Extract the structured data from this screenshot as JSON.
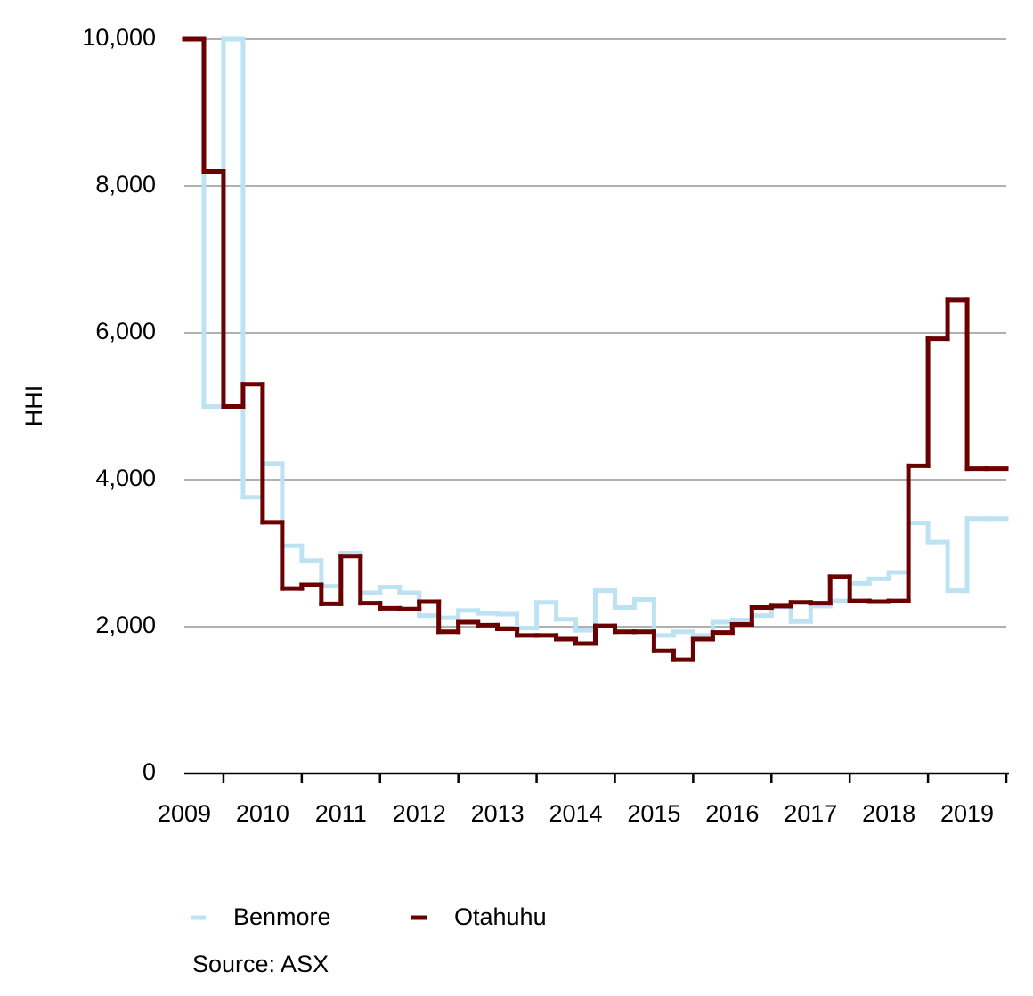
{
  "chart_data": {
    "type": "step-line",
    "y_label": "HHI",
    "source": "Source: ASX",
    "x": [
      2009.5,
      2009.75,
      2010,
      2010.25,
      2010.5,
      2010.75,
      2011,
      2011.25,
      2011.5,
      2011.75,
      2012,
      2012.25,
      2012.5,
      2012.75,
      2013,
      2013.25,
      2013.5,
      2013.75,
      2014,
      2014.25,
      2014.5,
      2014.75,
      2015,
      2015.25,
      2015.5,
      2015.75,
      2016,
      2016.25,
      2016.5,
      2016.75,
      2017,
      2017.25,
      2017.5,
      2017.75,
      2018,
      2018.25,
      2018.5,
      2018.75,
      2019,
      2019.25,
      2019.5,
      2019.75
    ],
    "xlim": [
      2009.5,
      2020
    ],
    "xticks": [
      {
        "value": 2009.5,
        "label": "2009"
      },
      {
        "value": 2010.5,
        "label": "2010"
      },
      {
        "value": 2011.5,
        "label": "2011"
      },
      {
        "value": 2012.5,
        "label": "2012"
      },
      {
        "value": 2013.5,
        "label": "2013"
      },
      {
        "value": 2014.5,
        "label": "2014"
      },
      {
        "value": 2015.5,
        "label": "2015"
      },
      {
        "value": 2016.5,
        "label": "2016"
      },
      {
        "value": 2017.5,
        "label": "2017"
      },
      {
        "value": 2018.5,
        "label": "2018"
      },
      {
        "value": 2019.5,
        "label": "2019"
      }
    ],
    "ylim": [
      0,
      10000
    ],
    "yticks": [
      0,
      {
        "value": 2000,
        "label": "2,000"
      },
      {
        "value": 4000,
        "label": "4,000"
      },
      {
        "value": 6000,
        "label": "6,000"
      },
      {
        "value": 8000,
        "label": "8,000"
      },
      {
        "value": 10000,
        "label": "10,000"
      }
    ],
    "grid": true,
    "legend": "bottom",
    "series": [
      {
        "name": "Benmore",
        "color": "#bde3f3",
        "values": [
          10000,
          5000,
          10000,
          3760,
          4220,
          3100,
          2900,
          2550,
          3000,
          2460,
          2540,
          2460,
          2150,
          2120,
          2220,
          2180,
          2170,
          1980,
          2330,
          2100,
          1950,
          2490,
          2260,
          2370,
          1880,
          1930,
          1880,
          2060,
          2090,
          2150,
          2270,
          2070,
          2280,
          2350,
          2590,
          2650,
          2740,
          3410,
          3150,
          2490,
          3470,
          3470
        ]
      },
      {
        "name": "Otahuhu",
        "color": "#6b0000",
        "values": [
          10000,
          8200,
          5000,
          5300,
          3420,
          2520,
          2570,
          2310,
          2960,
          2320,
          2250,
          2240,
          2340,
          1930,
          2060,
          2020,
          1970,
          1880,
          1880,
          1830,
          1770,
          2010,
          1930,
          1930,
          1670,
          1550,
          1830,
          1920,
          2030,
          2260,
          2280,
          2330,
          2320,
          2680,
          2350,
          2340,
          2350,
          4190,
          5920,
          6450,
          4150,
          4150
        ]
      }
    ]
  }
}
